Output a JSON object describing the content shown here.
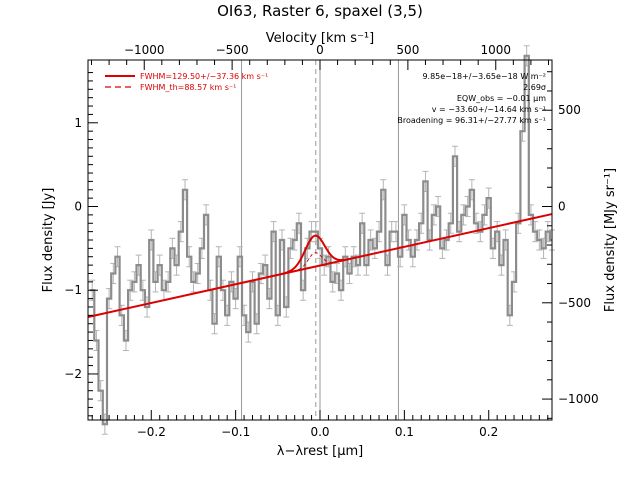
{
  "chart_data": {
    "type": "line",
    "title": "OI63, Raster 6, spaxel (3,5)",
    "x_bottom": {
      "label": "λ−λrest [μm]",
      "range": [
        -0.275,
        0.275
      ],
      "ticks": [
        -0.2,
        -0.1,
        0.0,
        0.1,
        0.2
      ],
      "tick_labels": [
        "−0.2",
        "−0.1",
        "0.0",
        "0.1",
        "0.2"
      ]
    },
    "x_top": {
      "label": "Velocity [km s⁻¹]",
      "range": [
        -1320,
        1320
      ],
      "ticks": [
        -1000,
        -500,
        0,
        500,
        1000
      ],
      "tick_labels": [
        "−1000",
        "−500",
        "0",
        "500",
        "1000"
      ]
    },
    "y_left": {
      "label": "Flux density [Jy]",
      "range": [
        -2.55,
        1.75
      ],
      "ticks": [
        -2,
        -1,
        0,
        1
      ],
      "tick_labels": [
        "−2",
        "−1",
        "0",
        "1"
      ]
    },
    "y_right": {
      "label": "Flux density [MJy sr⁻¹]",
      "ticks": [
        -1000,
        -500,
        0,
        500
      ],
      "tick_labels": [
        "−1000",
        "−500",
        "0",
        "500"
      ],
      "jy_per_unit": 0.0023
    },
    "vlines_solid": [
      -0.093,
      0.0,
      0.093
    ],
    "vline_dashed": -0.005,
    "series": [
      {
        "name": "data",
        "style": "step",
        "color": "#8c8c8c",
        "x": [
          -0.27,
          -0.265,
          -0.26,
          -0.255,
          -0.25,
          -0.245,
          -0.24,
          -0.235,
          -0.23,
          -0.225,
          -0.22,
          -0.215,
          -0.21,
          -0.205,
          -0.2,
          -0.195,
          -0.19,
          -0.185,
          -0.18,
          -0.175,
          -0.17,
          -0.165,
          -0.16,
          -0.155,
          -0.15,
          -0.145,
          -0.14,
          -0.135,
          -0.13,
          -0.125,
          -0.12,
          -0.115,
          -0.11,
          -0.105,
          -0.1,
          -0.095,
          -0.09,
          -0.085,
          -0.08,
          -0.075,
          -0.07,
          -0.065,
          -0.06,
          -0.055,
          -0.05,
          -0.045,
          -0.04,
          -0.035,
          -0.03,
          -0.025,
          -0.02,
          -0.015,
          -0.01,
          -0.005,
          0.0,
          0.005,
          0.01,
          0.015,
          0.02,
          0.025,
          0.03,
          0.035,
          0.04,
          0.045,
          0.05,
          0.055,
          0.06,
          0.065,
          0.07,
          0.075,
          0.08,
          0.085,
          0.09,
          0.095,
          0.1,
          0.105,
          0.11,
          0.115,
          0.12,
          0.125,
          0.13,
          0.135,
          0.14,
          0.145,
          0.15,
          0.155,
          0.16,
          0.165,
          0.17,
          0.175,
          0.18,
          0.185,
          0.19,
          0.195,
          0.2,
          0.205,
          0.21,
          0.215,
          0.22,
          0.225,
          0.23,
          0.235,
          0.24,
          0.245,
          0.25,
          0.255,
          0.26,
          0.265,
          0.27,
          0.275
        ],
        "y": [
          -1.0,
          -1.6,
          -2.2,
          -2.6,
          -1.1,
          -0.8,
          -0.6,
          -1.3,
          -1.6,
          -1.0,
          -0.9,
          -0.7,
          -1.0,
          -1.2,
          -0.4,
          -0.9,
          -0.7,
          -1.0,
          -0.9,
          -0.5,
          -0.7,
          -0.3,
          0.2,
          -0.6,
          -0.9,
          -0.8,
          -0.5,
          -0.1,
          -1.0,
          -1.4,
          -0.6,
          -1.0,
          -1.3,
          -0.9,
          -1.1,
          -0.6,
          -1.3,
          -1.5,
          -0.9,
          -1.4,
          -0.8,
          -0.7,
          -1.1,
          -0.3,
          -1.3,
          -0.4,
          -1.2,
          -0.5,
          -0.4,
          -0.2,
          -1.0,
          -0.5,
          -0.3,
          -0.3,
          -0.5,
          -0.7,
          -0.6,
          -0.9,
          -0.8,
          -1.0,
          -0.6,
          -0.8,
          -0.6,
          -0.7,
          -0.2,
          -0.7,
          -0.4,
          -0.5,
          -0.3,
          0.2,
          -0.7,
          -0.3,
          -0.3,
          -0.6,
          -0.1,
          -0.4,
          -0.6,
          -0.4,
          -0.2,
          0.3,
          -0.4,
          -0.1,
          0.0,
          -0.5,
          -0.4,
          -0.2,
          0.6,
          -0.3,
          -0.1,
          0.0,
          0.2,
          -0.2,
          -0.3,
          -0.1,
          0.1,
          -0.5,
          -0.3,
          -0.7,
          -0.4,
          -1.3,
          -0.9,
          -0.2,
          0.9,
          1.8,
          -0.1,
          -0.3,
          -0.4,
          -0.5,
          -0.3,
          -0.4
        ],
        "err": 0.12
      },
      {
        "name": "continuum",
        "style": "line",
        "color": "#dd0000",
        "x": [
          -0.275,
          0.275
        ],
        "y": [
          -1.32,
          -0.09
        ]
      },
      {
        "name": "gaussian",
        "style": "gauss",
        "color": "#dd0000",
        "center": -0.006,
        "sigma": 0.0115,
        "amplitude": 0.37,
        "cont_slope": 2.236,
        "cont_intercept": -0.705
      }
    ],
    "legend": [
      {
        "text": "FWHM=129.50+/−37.36 km s⁻¹",
        "color": "#dd0000",
        "dash": "none"
      },
      {
        "text": "FWHM_th=88.57 km s⁻¹",
        "color": "#dd0000",
        "dash": "6,4"
      }
    ],
    "annotations": [
      "9.85e−18+/−3.65e−18 W m⁻²",
      "2.69σ",
      "EQW_obs = −0.01 μm",
      "v = −33.60+/−14.64 km s⁻¹",
      "Broadening = 96.31+/−27.77 km s⁻¹"
    ]
  }
}
